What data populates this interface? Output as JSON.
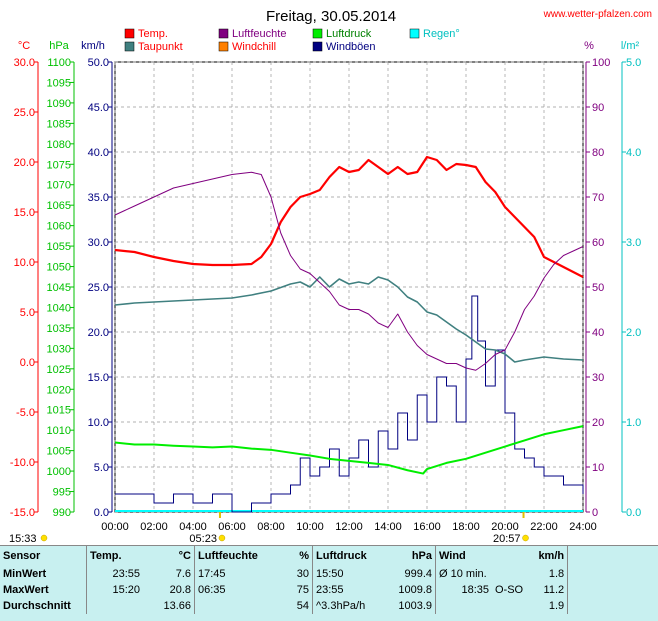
{
  "header": {
    "title": "Freitag, 30.05.2014",
    "website": "www.wetter-pfalzen.com"
  },
  "chart_data": {
    "type": "line",
    "xlabel": "",
    "x_ticks": [
      "00:00",
      "02:00",
      "04:00",
      "06:00",
      "08:00",
      "10:00",
      "12:00",
      "14:00",
      "16:00",
      "18:00",
      "20:00",
      "22:00",
      "24:00"
    ],
    "x_range_hours": [
      0,
      24
    ],
    "grid": true,
    "legend_placement": "top",
    "legend": [
      {
        "name": "Temp.",
        "color": "#ff0000",
        "text_color": "#ff0000"
      },
      {
        "name": "Luftfeuchte",
        "color": "#800080",
        "text_color": "#800080"
      },
      {
        "name": "Luftdruck",
        "color": "#00ee00",
        "text_color": "#008000"
      },
      {
        "name": "Regen°",
        "color": "#00ffff",
        "text_color": "#00c0c0"
      },
      {
        "name": "Taupunkt",
        "color": "#408080",
        "text_color": "#ff0000"
      },
      {
        "name": "Windchill",
        "color": "#ff8000",
        "text_color": "#ff0000"
      },
      {
        "name": "Windböen",
        "color": "#000080",
        "text_color": "#000080"
      }
    ],
    "axes": {
      "temp": {
        "unit": "°C",
        "min": -15,
        "max": 30,
        "ticks": [
          "30.0",
          "25.0",
          "20.0",
          "15.0",
          "10.0",
          "5.0",
          "0.0",
          "-5.0",
          "-10.0",
          "-15.0"
        ],
        "color": "#ff0000"
      },
      "pressure": {
        "unit": "hPa",
        "min": 990,
        "max": 1100,
        "ticks": [
          "1100",
          "1095",
          "1090",
          "1085",
          "1080",
          "1075",
          "1070",
          "1065",
          "1060",
          "1055",
          "1050",
          "1045",
          "1040",
          "1035",
          "1030",
          "1025",
          "1020",
          "1015",
          "1010",
          "1005",
          "1000",
          "995",
          "990"
        ],
        "color": "#00c000"
      },
      "wind": {
        "unit": "km/h",
        "min": 0,
        "max": 50,
        "ticks": [
          "50.0",
          "45.0",
          "40.0",
          "35.0",
          "30.0",
          "25.0",
          "20.0",
          "15.0",
          "10.0",
          "5.0",
          "0.0"
        ],
        "color": "#000080"
      },
      "humidity": {
        "unit": "%",
        "min": 0,
        "max": 100,
        "ticks": [
          "100",
          "90",
          "80",
          "70",
          "60",
          "50",
          "40",
          "30",
          "20",
          "10",
          "0"
        ],
        "color": "#800080"
      },
      "rain": {
        "unit": "l/m²",
        "min": 0,
        "max": 5,
        "ticks": [
          "5.0",
          "4.0",
          "3.0",
          "2.0",
          "1.0",
          "0.0"
        ],
        "color": "#00c0c0"
      }
    },
    "series": [
      {
        "name": "Temp.",
        "axis": "temp",
        "color": "#ff0000",
        "x": [
          0,
          1,
          2,
          3,
          4,
          5,
          6,
          7,
          7.5,
          8,
          8.5,
          9,
          9.5,
          10,
          10.5,
          11,
          11.5,
          12,
          12.5,
          13,
          13.5,
          14,
          14.5,
          15,
          15.5,
          16,
          16.5,
          17,
          17.5,
          18,
          18.5,
          19,
          19.5,
          20,
          20.5,
          21,
          21.5,
          22,
          23,
          24
        ],
        "values": [
          11.2,
          11,
          10.5,
          10.1,
          9.8,
          9.7,
          9.7,
          9.8,
          10.5,
          11.8,
          14,
          15.5,
          16.5,
          16.8,
          17.2,
          18.5,
          19.5,
          19,
          19.2,
          20.2,
          19.5,
          18.8,
          19.5,
          18.8,
          19,
          20.5,
          20.2,
          19.2,
          19.8,
          19.7,
          19.5,
          18,
          17,
          15.5,
          14.5,
          13.5,
          12.5,
          10.5,
          9.5,
          8.5
        ]
      },
      {
        "name": "Taupunkt",
        "axis": "temp",
        "color": "#408080",
        "x": [
          0,
          1,
          2,
          3,
          4,
          5,
          6,
          7,
          8,
          9,
          9.5,
          10,
          10.5,
          11,
          11.5,
          12,
          12.5,
          13,
          13.5,
          14,
          14.5,
          15,
          15.5,
          16,
          16.5,
          17,
          17.5,
          18,
          18.5,
          19,
          19.5,
          20,
          20.5,
          21,
          22,
          23,
          24
        ],
        "values": [
          5.7,
          5.9,
          6,
          6.1,
          6.2,
          6.3,
          6.4,
          6.7,
          7.1,
          7.8,
          8,
          7.5,
          8.5,
          7.5,
          8.3,
          7.8,
          8,
          7.8,
          8.5,
          8.2,
          7.5,
          6.5,
          6,
          5,
          4.7,
          4,
          3.3,
          2.7,
          2,
          1.3,
          1.2,
          0.8,
          0,
          0.2,
          0.5,
          0.3,
          0.2
        ]
      },
      {
        "name": "Luftfeuchte",
        "axis": "humidity",
        "color": "#800080",
        "x": [
          0,
          0.5,
          1,
          2,
          3,
          4,
          5,
          6,
          7,
          7.5,
          8,
          8.5,
          9,
          9.5,
          10,
          10.5,
          11,
          11.5,
          12,
          12.5,
          13,
          13.5,
          14,
          14.5,
          15,
          15.5,
          16,
          16.5,
          17,
          17.5,
          18,
          18.5,
          19,
          19.5,
          20,
          20.5,
          21,
          21.5,
          22,
          22.5,
          23,
          23.5,
          24
        ],
        "values": [
          66,
          67,
          68,
          70,
          72,
          73,
          74,
          75,
          75.5,
          75,
          70,
          62,
          57,
          54,
          53,
          51,
          49,
          46,
          45,
          45,
          44,
          42,
          41,
          44,
          40,
          37,
          35,
          34,
          33,
          33,
          32,
          31.5,
          33,
          35,
          36,
          40,
          45,
          48,
          52,
          55,
          57,
          58,
          59
        ]
      },
      {
        "name": "Luftdruck",
        "axis": "pressure",
        "color": "#00ee00",
        "x": [
          0,
          1,
          2,
          3,
          4,
          5,
          6,
          7,
          8,
          9,
          10,
          11,
          12,
          13,
          14,
          15,
          15.8,
          16,
          17,
          18,
          19,
          20,
          21,
          22,
          23,
          24
        ],
        "values": [
          1007,
          1006.5,
          1006.5,
          1006.2,
          1006,
          1005.8,
          1006,
          1005.5,
          1005.2,
          1004.5,
          1003.8,
          1003,
          1002.5,
          1002,
          1001.5,
          1000.2,
          999.4,
          1000.5,
          1002,
          1003,
          1004.5,
          1006,
          1007.5,
          1009,
          1010,
          1011
        ]
      }
    ],
    "wind_gusts": {
      "axis": "wind",
      "color": "#000080",
      "x": [
        0,
        1,
        2,
        3,
        4,
        5,
        6,
        7,
        8,
        9,
        9.5,
        10,
        10.5,
        11,
        11.5,
        12,
        12.5,
        13,
        13.5,
        14,
        14.5,
        15,
        15.5,
        16,
        16.5,
        17,
        17.5,
        18,
        18.3,
        18.6,
        19,
        19.5,
        20,
        20.5,
        21,
        21.5,
        22,
        23,
        24
      ],
      "values": [
        2,
        2,
        1,
        2,
        1,
        2,
        0,
        1,
        2,
        3,
        6,
        4,
        5,
        7,
        4,
        6,
        8,
        5,
        9,
        7,
        11,
        8,
        13,
        10,
        15,
        14,
        10,
        17,
        24,
        19,
        14,
        18,
        11,
        7,
        6,
        5,
        4,
        3,
        2
      ]
    },
    "sun_markers": [
      {
        "label": "05:23",
        "hour": 5.383
      },
      {
        "label": "20:57",
        "hour": 20.95
      }
    ],
    "current_time_label": "15:33"
  },
  "stats": {
    "headers": {
      "sensor": "Sensor",
      "temp": "Temp.",
      "temp_unit": "°C",
      "hum": "Luftfeuchte",
      "hum_unit": "%",
      "press": "Luftdruck",
      "press_unit": "hPa",
      "wind": "Wind",
      "wind_unit": "km/h"
    },
    "rows": [
      {
        "label": "MinWert",
        "temp_time": "23:55",
        "temp_val": "7.6",
        "hum_time": "17:45",
        "hum_val": "30",
        "press_time": "15:50",
        "press_val": "999.4",
        "wind_time": "Ø 10 min.",
        "wind_val": "1.8"
      },
      {
        "label": "MaxWert",
        "temp_time": "15:20",
        "temp_val": "20.8",
        "hum_time": "06:35",
        "hum_val": "75",
        "press_time": "23:55",
        "press_val": "1009.8",
        "wind_time": "18:35",
        "wind_dir": "O-SO",
        "wind_val": "11.2"
      },
      {
        "label": "Durchschnitt",
        "temp_time": "",
        "temp_val": "13.66",
        "hum_time": "",
        "hum_val": "54",
        "press_time": "^3.3hPa/h",
        "press_val": "1003.9",
        "wind_time": "",
        "wind_val": "1.9"
      }
    ]
  }
}
